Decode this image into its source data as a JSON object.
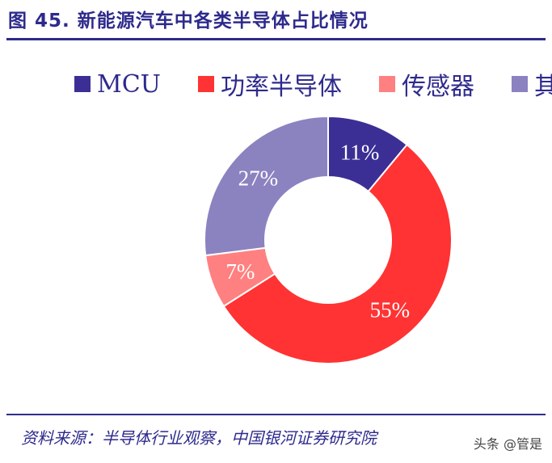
{
  "header": {
    "title": "图 45. 新能源汽车中各类半导体占比情况"
  },
  "footer": {
    "source": "资料来源：半导体行业观察，中国银河证券研究院",
    "watermark": "头条 @管是"
  },
  "chart_data": {
    "type": "pie",
    "donut": true,
    "categories": [
      "MCU",
      "功率半导体",
      "传感器",
      "其他"
    ],
    "legend_labels": [
      "MCU",
      "功率半导体",
      "传感器",
      "其伯"
    ],
    "values": [
      11,
      55,
      7,
      27
    ],
    "labels": [
      "11%",
      "55%",
      "7%",
      "27%"
    ],
    "colors": [
      "#3b2f95",
      "#ff3333",
      "#ff8080",
      "#8b82c0"
    ],
    "legend_position": "top"
  }
}
